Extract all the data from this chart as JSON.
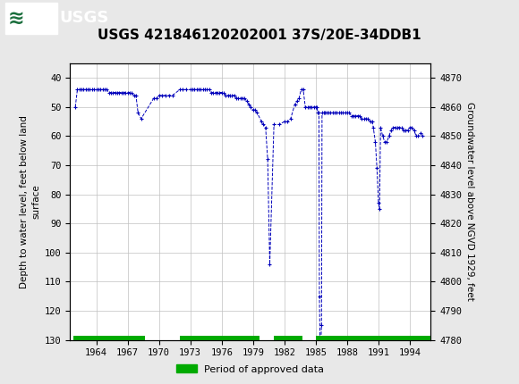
{
  "title": "USGS 421846120202001 37S/20E-34DDB1",
  "ylabel_left": "Depth to water level, feet below land\nsurface",
  "ylabel_right": "Groundwater level above NGVD 1929, feet",
  "ylim_left": [
    130,
    35
  ],
  "ylim_right": [
    4780,
    4875
  ],
  "yticks_left": [
    40,
    50,
    60,
    70,
    80,
    90,
    100,
    110,
    120,
    130
  ],
  "yticks_right": [
    4870,
    4860,
    4850,
    4840,
    4830,
    4820,
    4810,
    4800,
    4790,
    4780
  ],
  "xlim": [
    1961.5,
    1996.0
  ],
  "xticks": [
    1964,
    1967,
    1970,
    1973,
    1976,
    1979,
    1982,
    1985,
    1988,
    1991,
    1994
  ],
  "header_color": "#1a6e3c",
  "background_color": "#e8e8e8",
  "plot_bg_color": "#ffffff",
  "grid_color": "#c0c0c0",
  "data_color": "#0000bb",
  "legend_label": "Period of approved data",
  "legend_color": "#00aa00",
  "data_points": [
    [
      1962.0,
      50
    ],
    [
      1962.2,
      44
    ],
    [
      1962.4,
      44
    ],
    [
      1962.6,
      44
    ],
    [
      1962.8,
      44
    ],
    [
      1963.0,
      44
    ],
    [
      1963.2,
      44
    ],
    [
      1963.4,
      44
    ],
    [
      1963.6,
      44
    ],
    [
      1963.8,
      44
    ],
    [
      1964.0,
      44
    ],
    [
      1964.2,
      44
    ],
    [
      1964.4,
      44
    ],
    [
      1964.6,
      44
    ],
    [
      1964.8,
      44
    ],
    [
      1965.0,
      44
    ],
    [
      1965.2,
      45
    ],
    [
      1965.4,
      45
    ],
    [
      1965.6,
      45
    ],
    [
      1965.8,
      45
    ],
    [
      1966.0,
      45
    ],
    [
      1966.2,
      45
    ],
    [
      1966.4,
      45
    ],
    [
      1966.6,
      45
    ],
    [
      1966.8,
      45
    ],
    [
      1967.0,
      45
    ],
    [
      1967.2,
      45
    ],
    [
      1967.4,
      45
    ],
    [
      1967.6,
      46
    ],
    [
      1967.8,
      46
    ],
    [
      1968.0,
      52
    ],
    [
      1968.3,
      54
    ],
    [
      1969.5,
      47
    ],
    [
      1969.8,
      47
    ],
    [
      1970.0,
      46
    ],
    [
      1970.3,
      46
    ],
    [
      1970.6,
      46
    ],
    [
      1971.0,
      46
    ],
    [
      1971.3,
      46
    ],
    [
      1972.0,
      44
    ],
    [
      1972.3,
      44
    ],
    [
      1972.6,
      44
    ],
    [
      1973.0,
      44
    ],
    [
      1973.2,
      44
    ],
    [
      1973.4,
      44
    ],
    [
      1973.6,
      44
    ],
    [
      1973.8,
      44
    ],
    [
      1974.0,
      44
    ],
    [
      1974.2,
      44
    ],
    [
      1974.4,
      44
    ],
    [
      1974.6,
      44
    ],
    [
      1974.8,
      44
    ],
    [
      1975.0,
      45
    ],
    [
      1975.2,
      45
    ],
    [
      1975.4,
      45
    ],
    [
      1975.6,
      45
    ],
    [
      1975.8,
      45
    ],
    [
      1976.0,
      45
    ],
    [
      1976.2,
      45
    ],
    [
      1976.4,
      46
    ],
    [
      1976.6,
      46
    ],
    [
      1976.8,
      46
    ],
    [
      1977.0,
      46
    ],
    [
      1977.2,
      46
    ],
    [
      1977.4,
      47
    ],
    [
      1977.6,
      47
    ],
    [
      1977.8,
      47
    ],
    [
      1978.0,
      47
    ],
    [
      1978.2,
      47
    ],
    [
      1978.4,
      48
    ],
    [
      1978.6,
      49
    ],
    [
      1978.8,
      50
    ],
    [
      1979.0,
      51
    ],
    [
      1979.2,
      51
    ],
    [
      1979.4,
      52
    ],
    [
      1979.8,
      55
    ],
    [
      1980.0,
      56
    ],
    [
      1980.2,
      57
    ],
    [
      1980.4,
      68
    ],
    [
      1980.6,
      104
    ],
    [
      1981.0,
      56
    ],
    [
      1981.5,
      56
    ],
    [
      1982.0,
      55
    ],
    [
      1982.3,
      55
    ],
    [
      1982.6,
      54
    ],
    [
      1983.0,
      49
    ],
    [
      1983.2,
      48
    ],
    [
      1983.4,
      47
    ],
    [
      1983.6,
      44
    ],
    [
      1983.8,
      44
    ],
    [
      1984.0,
      50
    ],
    [
      1984.2,
      50
    ],
    [
      1984.4,
      50
    ],
    [
      1984.6,
      50
    ],
    [
      1984.8,
      50
    ],
    [
      1985.0,
      50
    ],
    [
      1985.1,
      50
    ],
    [
      1985.2,
      52
    ],
    [
      1985.3,
      52
    ],
    [
      1985.35,
      115
    ],
    [
      1985.4,
      130
    ],
    [
      1985.5,
      130
    ],
    [
      1985.55,
      125
    ],
    [
      1985.6,
      52
    ],
    [
      1985.8,
      52
    ],
    [
      1985.9,
      52
    ],
    [
      1986.0,
      52
    ],
    [
      1986.2,
      52
    ],
    [
      1986.4,
      52
    ],
    [
      1986.6,
      52
    ],
    [
      1986.8,
      52
    ],
    [
      1987.0,
      52
    ],
    [
      1987.2,
      52
    ],
    [
      1987.4,
      52
    ],
    [
      1987.6,
      52
    ],
    [
      1987.8,
      52
    ],
    [
      1988.0,
      52
    ],
    [
      1988.2,
      52
    ],
    [
      1988.4,
      53
    ],
    [
      1988.6,
      53
    ],
    [
      1988.8,
      53
    ],
    [
      1989.0,
      53
    ],
    [
      1989.2,
      53
    ],
    [
      1989.4,
      54
    ],
    [
      1989.6,
      54
    ],
    [
      1989.8,
      54
    ],
    [
      1990.0,
      54
    ],
    [
      1990.2,
      55
    ],
    [
      1990.4,
      55
    ],
    [
      1990.5,
      57
    ],
    [
      1990.7,
      62
    ],
    [
      1990.85,
      71
    ],
    [
      1991.0,
      83
    ],
    [
      1991.1,
      85
    ],
    [
      1991.2,
      57
    ],
    [
      1991.4,
      60
    ],
    [
      1991.6,
      62
    ],
    [
      1991.8,
      62
    ],
    [
      1992.0,
      60
    ],
    [
      1992.2,
      58
    ],
    [
      1992.4,
      57
    ],
    [
      1992.6,
      57
    ],
    [
      1992.8,
      57
    ],
    [
      1993.0,
      57
    ],
    [
      1993.2,
      57
    ],
    [
      1993.4,
      58
    ],
    [
      1993.6,
      58
    ],
    [
      1993.8,
      58
    ],
    [
      1994.0,
      57
    ],
    [
      1994.2,
      57
    ],
    [
      1994.4,
      58
    ],
    [
      1994.6,
      60
    ],
    [
      1994.8,
      60
    ],
    [
      1995.0,
      59
    ],
    [
      1995.2,
      60
    ]
  ],
  "approved_periods": [
    [
      1961.8,
      1968.7
    ],
    [
      1972.0,
      1979.6
    ],
    [
      1981.0,
      1983.7
    ],
    [
      1985.0,
      1996.0
    ]
  ]
}
